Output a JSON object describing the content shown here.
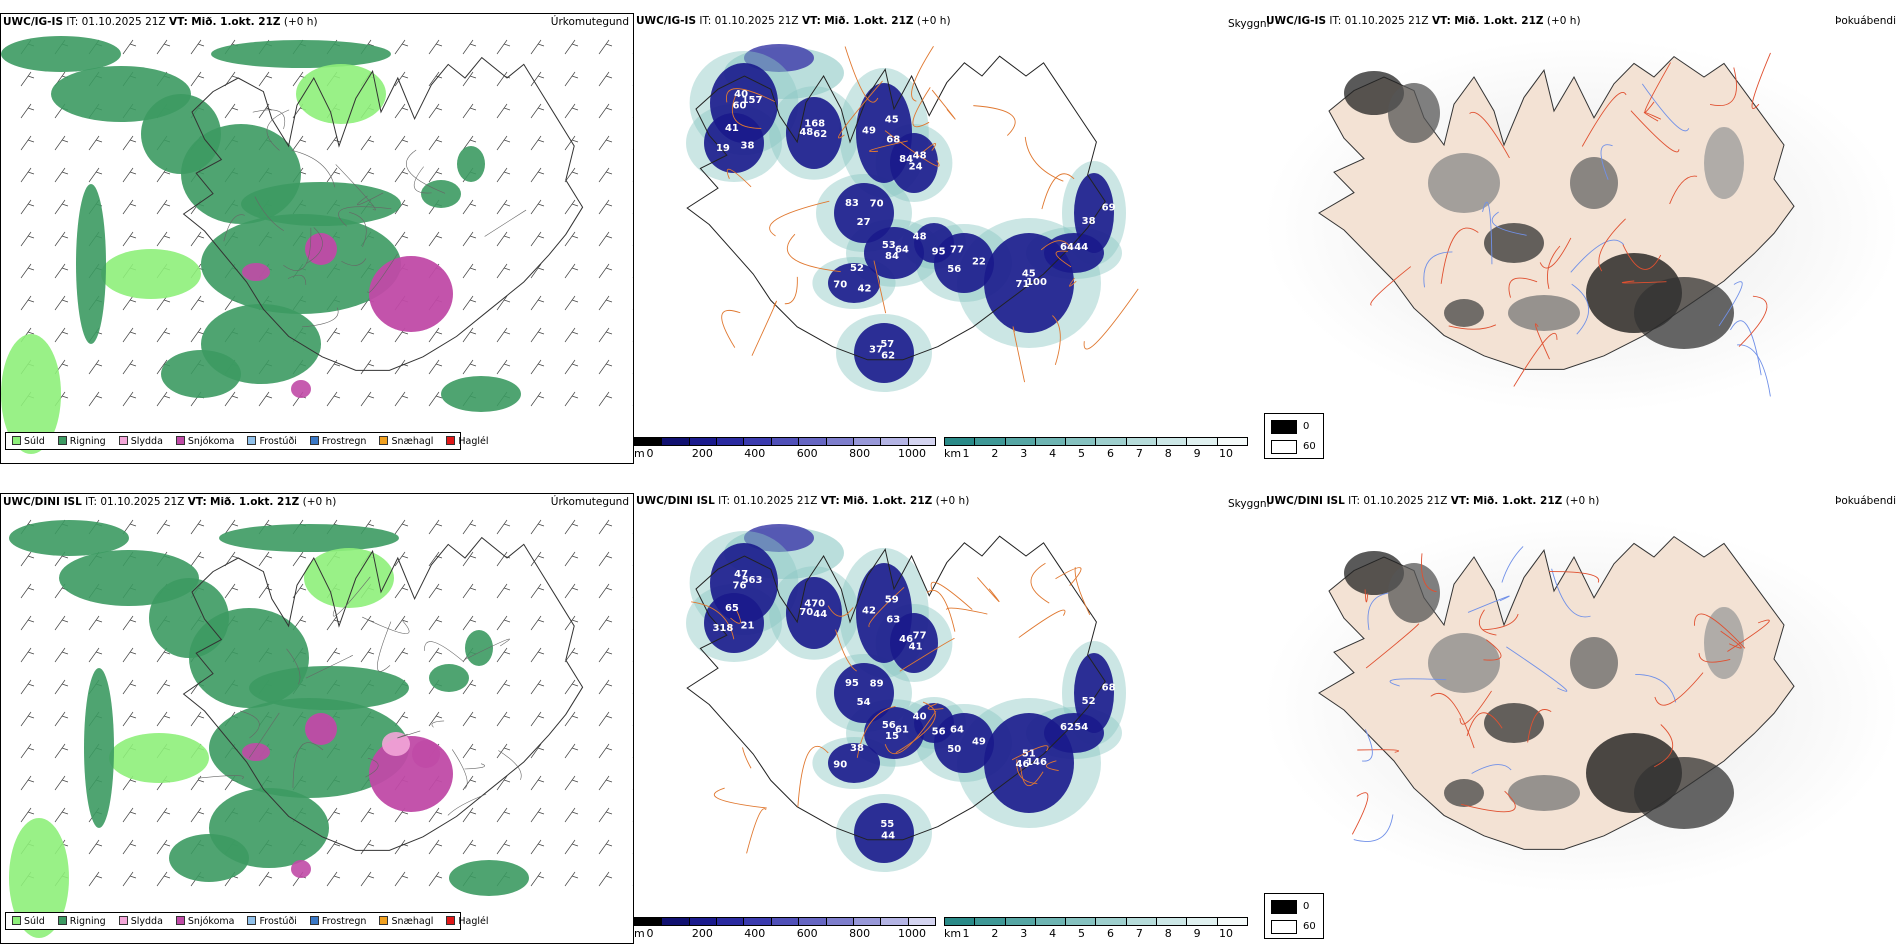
{
  "rows": [
    {
      "model": "UWC/IG-IS",
      "it_label": "IT:",
      "it_value": "01.10.2025 21Z",
      "vt_label": "VT:",
      "vt_value": "Mið. 1.okt. 21Z",
      "lead": "(+0 h)",
      "precip_title": "Úrkomutegund",
      "vis_title": "Skyggni",
      "fog_title": "Þokuábendi",
      "vis_numbers": [
        "157",
        "19",
        "168",
        "68",
        "84",
        "70",
        "84",
        "77",
        "100",
        "70",
        "57",
        "95",
        "64",
        "69",
        "60",
        "41",
        "62",
        "49",
        "48",
        "27",
        "53",
        "22",
        "71",
        "52",
        "62",
        "48",
        "44",
        "38",
        "40",
        "38",
        "48",
        "45",
        "24",
        "83",
        "64",
        "56",
        "45",
        "42",
        "37"
      ]
    },
    {
      "model": "UWC/DINI ISL",
      "it_label": "IT:",
      "it_value": "01.10.2025 21Z",
      "vt_label": "VT:",
      "vt_value": "Mið. 1.okt. 21Z",
      "lead": "(+0 h)",
      "precip_title": "Úrkomutegund",
      "vis_title": "Skyggni",
      "fog_title": "Þokuábendi",
      "vis_numbers": [
        "563",
        "318",
        "470",
        "63",
        "46",
        "89",
        "15",
        "64",
        "146",
        "90",
        "55",
        "56",
        "62",
        "68",
        "76",
        "65",
        "44",
        "42",
        "77",
        "54",
        "56",
        "49",
        "46",
        "38",
        "44",
        "40",
        "54",
        "52",
        "47",
        "21",
        "70",
        "59",
        "41",
        "95",
        "61",
        "50",
        "51"
      ]
    }
  ],
  "precip_legend": [
    {
      "label": "Súld",
      "color": "#8ef07a"
    },
    {
      "label": "Rigning",
      "color": "#3c9a62"
    },
    {
      "label": "Slydda",
      "color": "#f3a6d8"
    },
    {
      "label": "Snjókoma",
      "color": "#c04aa6"
    },
    {
      "label": "Frostúði",
      "color": "#8fc0ea"
    },
    {
      "label": "Frostregn",
      "color": "#3a78c6"
    },
    {
      "label": "Snæhagl",
      "color": "#f0a020"
    },
    {
      "label": "Haglél",
      "color": "#e01818"
    }
  ],
  "vis_bar_m": {
    "unit": "m",
    "ticks": [
      "0",
      "200",
      "400",
      "600",
      "800",
      "1000"
    ],
    "colors": [
      "#000000",
      "#101070",
      "#1a1a8c",
      "#2a2aa0",
      "#3b3bae",
      "#5050b8",
      "#6666c2",
      "#7e7ecc",
      "#9898d8",
      "#b4b4e4",
      "#d4d4f0"
    ]
  },
  "vis_bar_km": {
    "unit": "km",
    "ticks": [
      "1",
      "2",
      "3",
      "4",
      "5",
      "6",
      "7",
      "8",
      "9",
      "10"
    ],
    "colors": [
      "#2a8a88",
      "#3f9896",
      "#56a6a4",
      "#6eb4b2",
      "#86c2c0",
      "#9ecfcd",
      "#b6dcda",
      "#cce7e6",
      "#e0f1f0",
      "#f4faf9"
    ]
  },
  "fog_legend": [
    {
      "label": "0",
      "color": "#000000"
    },
    {
      "label": "60",
      "color": "#ffffff"
    }
  ],
  "colors": {
    "land_outline": "#222222",
    "road": "#e07830",
    "fog_land": "#f3e2d4",
    "river": "#7090e8"
  }
}
